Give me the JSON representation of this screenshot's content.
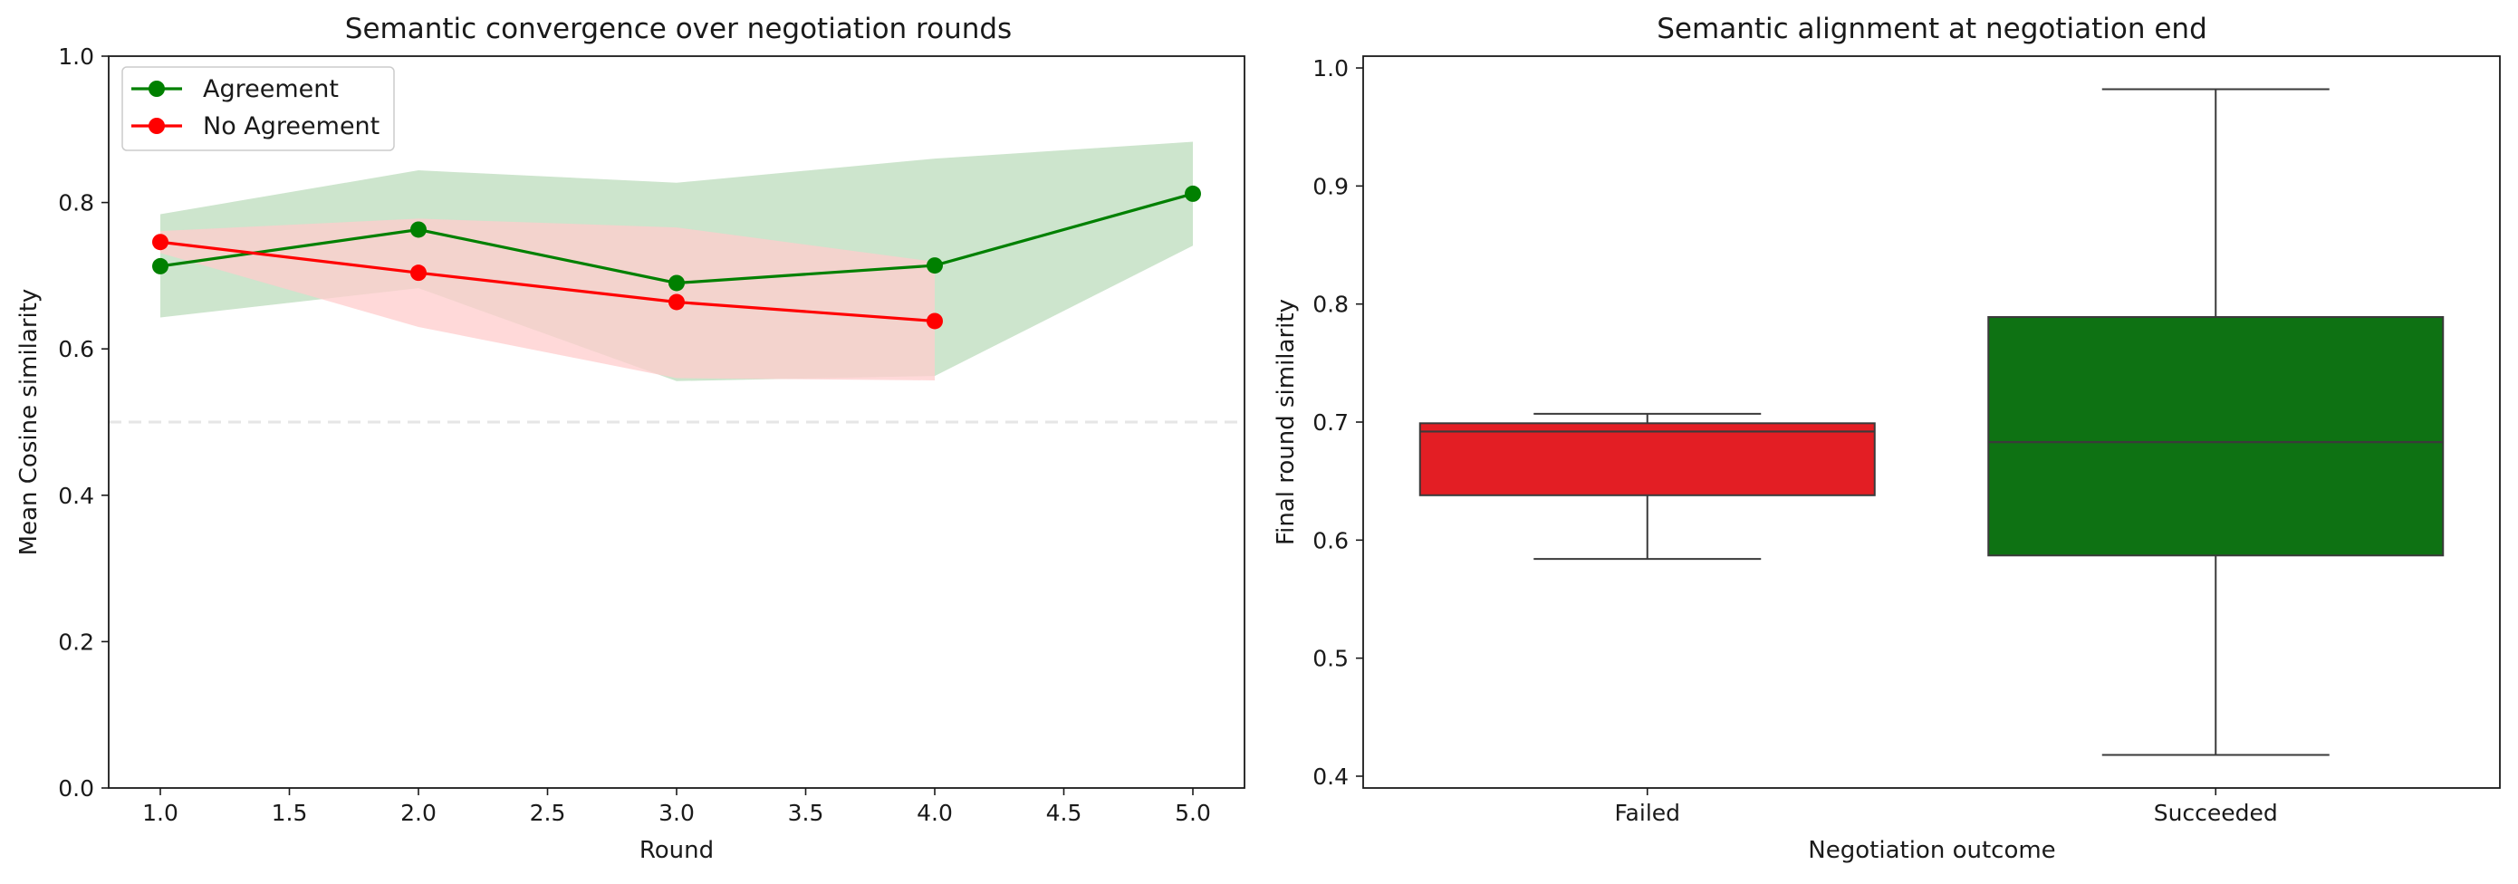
{
  "chart_data": [
    {
      "type": "line",
      "title": "Semantic convergence over negotiation rounds",
      "xlabel": "Round",
      "ylabel": "Mean Cosine similarity",
      "xlim": [
        0.8,
        5.2
      ],
      "ylim": [
        0.0,
        1.0
      ],
      "xticks": [
        "1.0",
        "1.5",
        "2.0",
        "2.5",
        "3.0",
        "3.5",
        "4.0",
        "4.5",
        "5.0"
      ],
      "yticks": [
        "0.0",
        "0.2",
        "0.4",
        "0.6",
        "0.8",
        "1.0"
      ],
      "grid": false,
      "legend_position": "top-left",
      "reference_line": {
        "y": 0.5,
        "style": "dashed",
        "color": "#e6e6e6"
      },
      "series": [
        {
          "name": "Agreement",
          "color": "#008000",
          "band_color": "#cde5cd",
          "x": [
            1,
            2,
            3,
            4,
            5
          ],
          "y": [
            0.713,
            0.763,
            0.69,
            0.714,
            0.812
          ],
          "lower": [
            0.643,
            0.683,
            0.556,
            0.563,
            0.741
          ],
          "upper": [
            0.784,
            0.844,
            0.827,
            0.86,
            0.883
          ]
        },
        {
          "name": "No Agreement",
          "color": "#ff0000",
          "band_color": "#ffcccc",
          "x": [
            1,
            2,
            3,
            4
          ],
          "y": [
            0.746,
            0.704,
            0.664,
            0.638
          ],
          "lower": [
            0.731,
            0.63,
            0.56,
            0.557
          ],
          "upper": [
            0.761,
            0.778,
            0.766,
            0.719
          ]
        }
      ]
    },
    {
      "type": "box",
      "title": "Semantic alignment at negotiation end",
      "xlabel": "Negotiation outcome",
      "ylabel": "Final round similarity",
      "ylim": [
        0.39,
        1.01
      ],
      "yticks": [
        "0.4",
        "0.5",
        "0.6",
        "0.7",
        "0.8",
        "0.9",
        "1.0"
      ],
      "grid": false,
      "categories": [
        "Failed",
        "Succeeded"
      ],
      "boxes": [
        {
          "category": "Failed",
          "color": "#e31e24",
          "whisker_low": 0.584,
          "q1": 0.638,
          "median": 0.692,
          "q3": 0.699,
          "whisker_high": 0.707
        },
        {
          "category": "Succeeded",
          "color": "#0e7213",
          "whisker_low": 0.418,
          "q1": 0.587,
          "median": 0.683,
          "q3": 0.789,
          "whisker_high": 0.982
        }
      ]
    }
  ]
}
